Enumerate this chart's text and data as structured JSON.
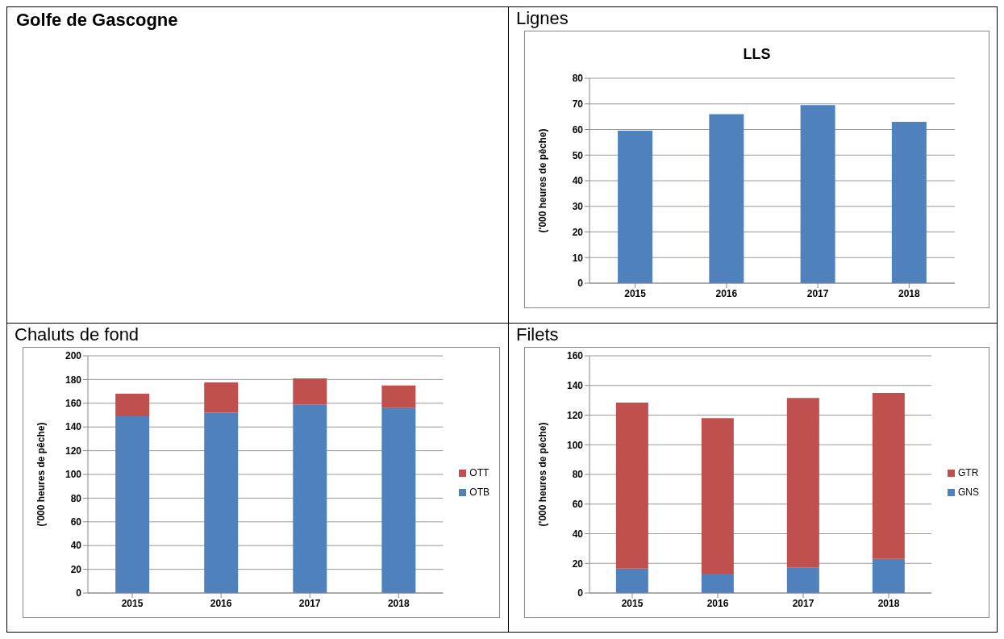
{
  "chart_data": [
    {
      "type": "bar",
      "title": "LLS",
      "subtitle": "Lignes",
      "annotations": [
        "Golfe de Gascogne"
      ],
      "ylabel": "('000 heures de pêche)",
      "categories": [
        "2015",
        "2016",
        "2017",
        "2018"
      ],
      "values": [
        59.5,
        66,
        69.5,
        63
      ],
      "color": "#4f81bd",
      "ylim": [
        0,
        80
      ],
      "yticks": [
        0,
        10,
        20,
        30,
        40,
        50,
        60,
        70,
        80
      ],
      "grid": "y"
    },
    {
      "type": "bar",
      "subtitle": "Chaluts de fond",
      "ylabel": "('000 heures de pêche)",
      "categories": [
        "2015",
        "2016",
        "2017",
        "2018"
      ],
      "stacked": true,
      "series": [
        {
          "name": "OTB",
          "color": "#4f81bd",
          "values": [
            149,
            152,
            159,
            156
          ]
        },
        {
          "name": "OTT",
          "color": "#c0504d",
          "values": [
            19,
            25.5,
            22,
            19
          ]
        }
      ],
      "ylim": [
        0,
        200
      ],
      "yticks": [
        0,
        20,
        40,
        60,
        80,
        100,
        120,
        140,
        160,
        180,
        200
      ],
      "grid": "y",
      "legend": "right"
    },
    {
      "type": "bar",
      "subtitle": "Filets",
      "ylabel": "('000 heures de pêche)",
      "categories": [
        "2015",
        "2016",
        "2017",
        "2018"
      ],
      "stacked": true,
      "series": [
        {
          "name": "GNS",
          "color": "#4f81bd",
          "values": [
            16.5,
            13,
            17,
            23
          ]
        },
        {
          "name": "GTR",
          "color": "#c0504d",
          "values": [
            112,
            105,
            114.5,
            112
          ]
        }
      ],
      "ylim": [
        0,
        160
      ],
      "yticks": [
        0,
        20,
        40,
        60,
        80,
        100,
        120,
        140,
        160
      ],
      "grid": "y",
      "legend": "right"
    }
  ]
}
